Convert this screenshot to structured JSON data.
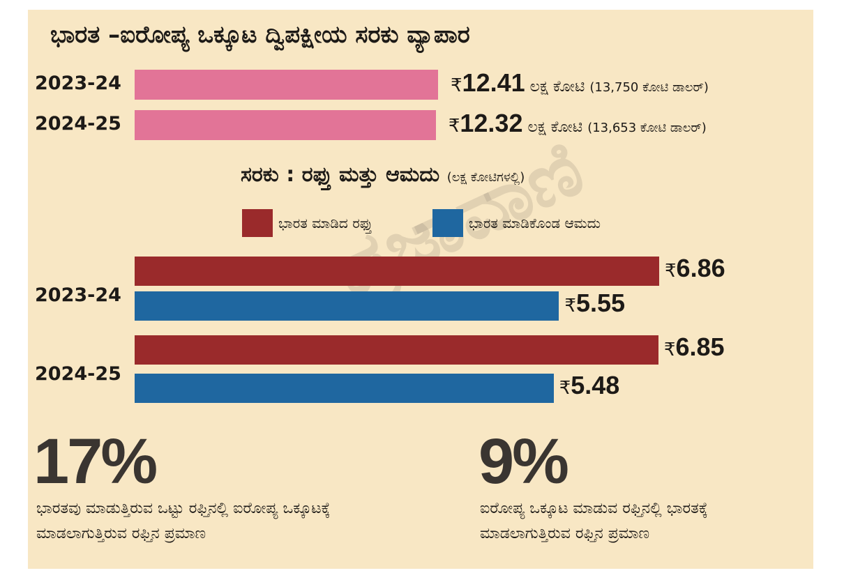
{
  "title": "ಭಾರತ –ಐರೋಪ್ಯ ಒಕ್ಕೂಟ ದ್ವಿಪಕ್ಷೀಯ ಸರಕು ವ್ಯಾಪಾರ",
  "watermark": "ಪ್ರಜಾವಾಣಿ",
  "colors": {
    "total": "#e27497",
    "export": "#9a2a2b",
    "import": "#1f67a0",
    "background": "#f8e7c4"
  },
  "chart_data": [
    {
      "type": "bar",
      "title": "ಭಾರತ –ಐರೋಪ್ಯ ಒಕ್ಕೂಟ ದ್ವಿಪಕ್ಷೀಯ ಸರಕು ವ್ಯಾಪಾರ",
      "categories": [
        "2023-24",
        "2024-25"
      ],
      "values": [
        12.41,
        12.32
      ],
      "currency": "₹",
      "unit": "ಲಕ್ಷ ಕೋಟಿ",
      "usd_notes": [
        "(13,750 ಕೋಟಿ ಡಾಲರ್)",
        "(13,653 ಕೋಟಿ ಡಾಲರ್)"
      ]
    },
    {
      "type": "bar",
      "title": "ಸರಕು : ರಫ್ತು ಮತ್ತು ಆಮದು",
      "subtitle": "(ಲಕ್ಷ ಕೋಟಿಗಳಲ್ಲಿ)",
      "categories": [
        "2023-24",
        "2024-25"
      ],
      "currency": "₹",
      "series": [
        {
          "name": "ಭಾರತ ಮಾಡಿದ ರಫ್ತು",
          "values": [
            6.86,
            6.85
          ]
        },
        {
          "name": "ಭಾರತ ಮಾಡಿಕೊಂಡ ಆಮದು",
          "values": [
            5.55,
            5.48
          ]
        }
      ]
    }
  ],
  "stats": [
    {
      "value": "17%",
      "text": "ಭಾರತವು ಮಾಡುತ್ತಿರುವ ಒಟ್ಟು ರಫ್ತಿನಲ್ಲಿ ಐರೋಪ್ಯ ಒಕ್ಕೂಟಕ್ಕೆ ಮಾಡಲಾಗುತ್ತಿರುವ ರಫ್ತಿನ ಪ್ರಮಾಣ"
    },
    {
      "value": "9%",
      "text": "ಐರೋಪ್ಯ ಒಕ್ಕೂಟ ಮಾಡುವ ರಫ್ತಿನಲ್ಲಿ ಭಾರತಕ್ಕೆ ಮಾಡಲಾಗುತ್ತಿರುವ ರಫ್ತಿನ ಪ್ರಮಾಣ"
    }
  ]
}
